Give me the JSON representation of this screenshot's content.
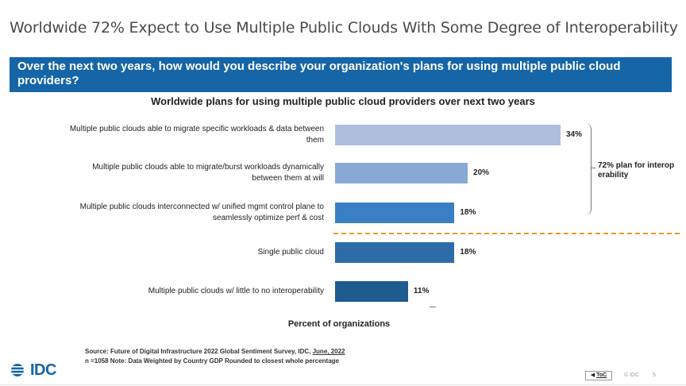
{
  "slide": {
    "title": "Worldwide 72% Expect to Use Multiple Public Clouds With Some Degree of Interoperability",
    "question": "Over the next two years, how would you describe your organization's plans for using multiple public cloud providers?"
  },
  "chart_data": {
    "type": "bar",
    "orientation": "horizontal",
    "title": "Worldwide plans for using multiple public cloud providers over next two years",
    "xlabel": "Percent of organizations",
    "ylabel": "",
    "xlim": [
      0,
      38
    ],
    "grid": false,
    "categories": [
      "Multiple public clouds able to migrate specific workloads & data between them",
      "Multiple public clouds able to migrate/burst workloads dynamically between them at will",
      "Multiple public clouds interconnected w/ unified mgmt control plane to seamlessly optimize perf & cost",
      "Single public cloud",
      "Multiple public clouds w/ little to no interoperability"
    ],
    "label_lines": [
      [
        "Multiple public clouds able to migrate specific workloads & data between",
        "them"
      ],
      [
        "Multiple public clouds able to migrate/burst workloads dynamically",
        "between them at will"
      ],
      [
        "Multiple public clouds interconnected w/ unified mgmt control plane to",
        "seamlessly optimize perf & cost"
      ],
      [
        "Single public cloud"
      ],
      [
        "Multiple public clouds w/ little to no interoperability"
      ]
    ],
    "values": [
      34,
      20,
      18,
      18,
      11
    ],
    "value_labels": [
      "34%",
      "20%",
      "18%",
      "18%",
      "11%"
    ],
    "bar_colors": [
      "#aebfdc",
      "#8aa8d6",
      "#3a7fc3",
      "#2d6ca9",
      "#1e5b8f"
    ],
    "annotation": "72% plan for interoperability"
  },
  "footer": {
    "source_line_prefix": "Source: Future of Digital Infrastructure 2022 Global Sentiment Survey, IDC,",
    "source_date": "June, 2022",
    "note_line": "n =1058 Note: Data Weighted by Country GDP    Rounded to closest whole percentage",
    "logo_text": "IDC",
    "toc_label": "ToC",
    "brand": "© IDC",
    "page_number": "5"
  },
  "colors": {
    "banner": "#1565a7",
    "divider": "#f0961b",
    "logo": "#1565a7"
  }
}
